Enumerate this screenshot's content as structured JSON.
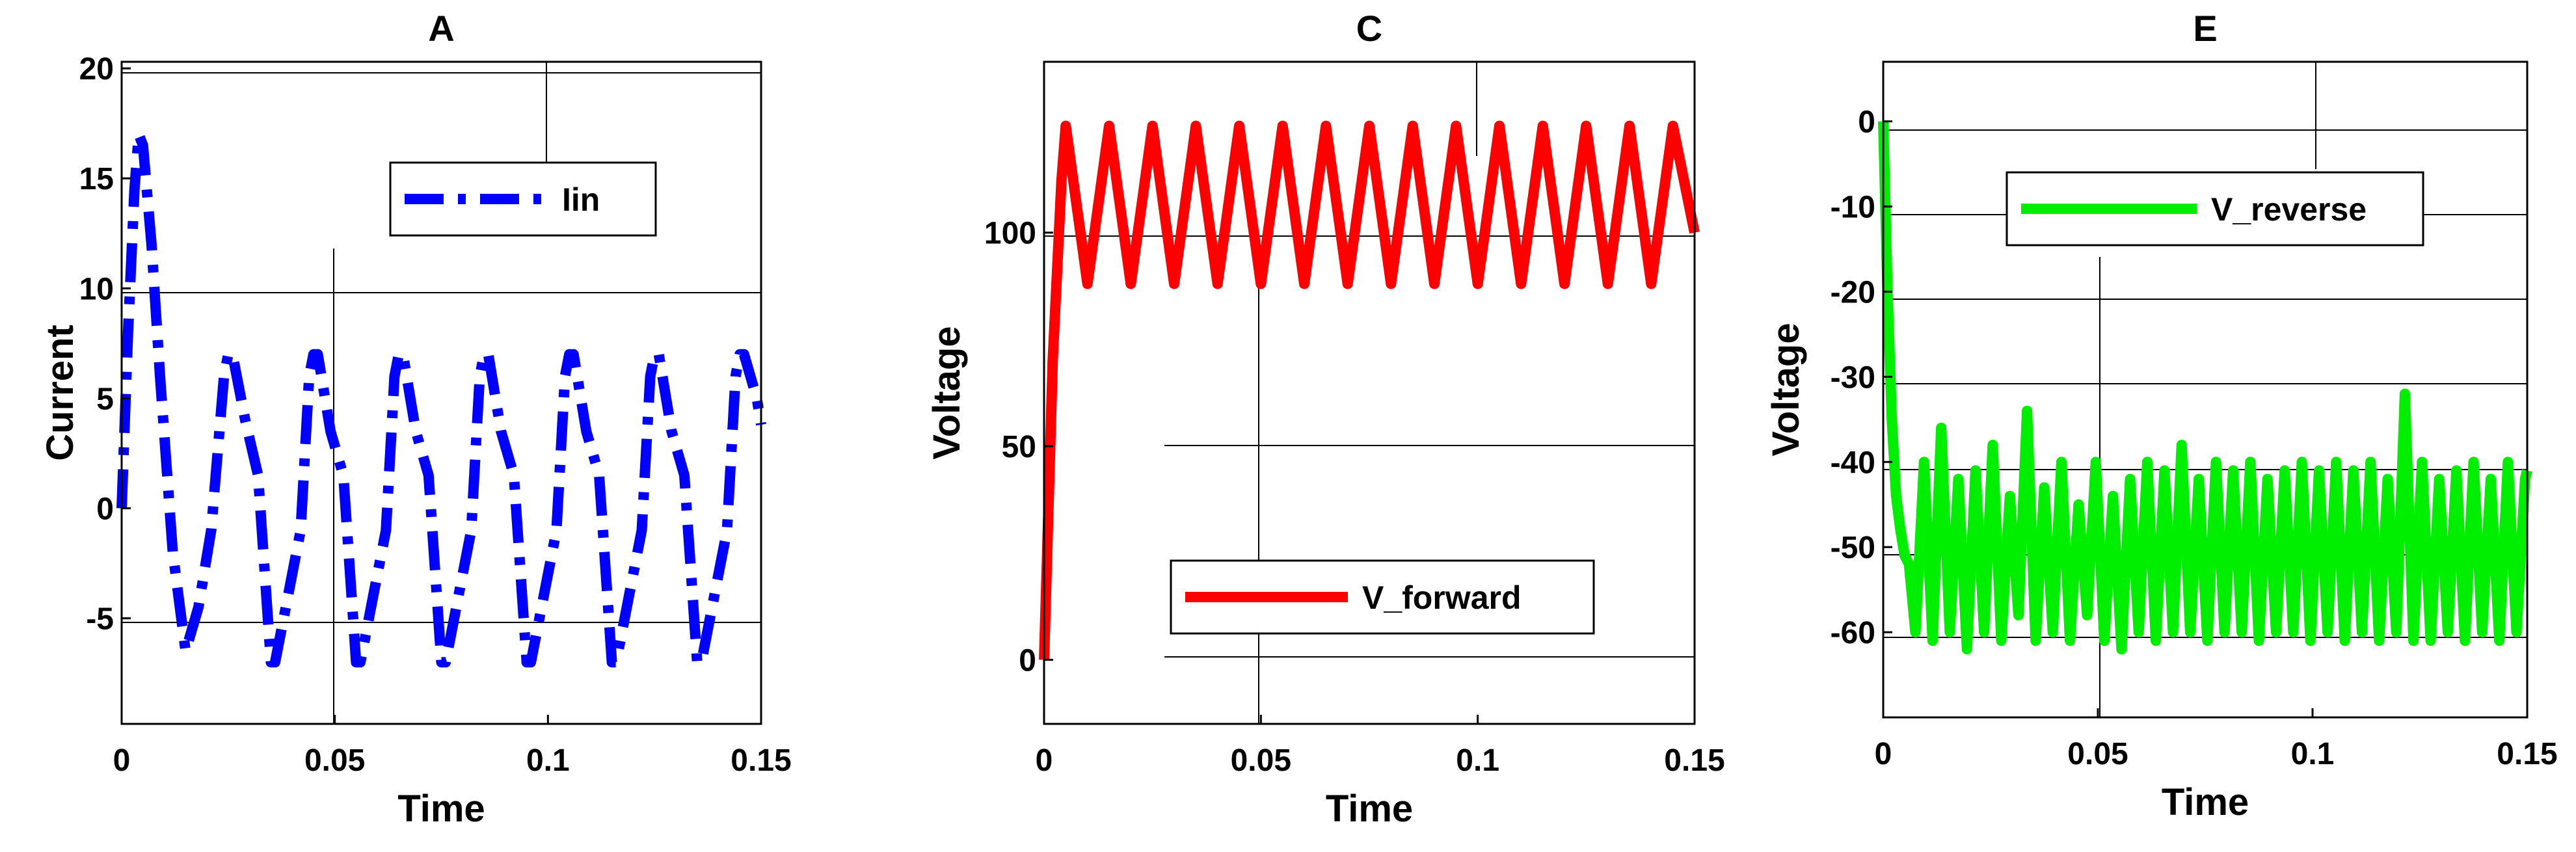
{
  "chart_data": [
    {
      "type": "line",
      "title": "A",
      "xlabel": "Time",
      "ylabel": "Current",
      "xlim": [
        0,
        0.15
      ],
      "ylim": [
        -9.8,
        20.3
      ],
      "xticks": [
        "0",
        "0.05",
        "0.1",
        "0.15"
      ],
      "xtick_values": [
        0,
        0.05,
        0.1,
        0.15
      ],
      "yticks": [
        "-5",
        "0",
        "5",
        "10",
        "15",
        "20"
      ],
      "ytick_values": [
        -5,
        0,
        5,
        10,
        15,
        20
      ],
      "legend_position": "top-right",
      "series": [
        {
          "name": "Iin",
          "color": "#0000ff",
          "style": "dash-dot",
          "x": [
            0,
            0.0015,
            0.003,
            0.004,
            0.005,
            0.007,
            0.009,
            0.012,
            0.015,
            0.018,
            0.021,
            0.024,
            0.025,
            0.026,
            0.029,
            0.032,
            0.035,
            0.036,
            0.039,
            0.042,
            0.044,
            0.045,
            0.046,
            0.049,
            0.052,
            0.055,
            0.056,
            0.059,
            0.062,
            0.064,
            0.065,
            0.066,
            0.069,
            0.072,
            0.075,
            0.076,
            0.079,
            0.082,
            0.084,
            0.085,
            0.086,
            0.089,
            0.092,
            0.095,
            0.096,
            0.099,
            0.102,
            0.104,
            0.105,
            0.106,
            0.109,
            0.112,
            0.115,
            0.116,
            0.119,
            0.122,
            0.124,
            0.125,
            0.126,
            0.129,
            0.132,
            0.135,
            0.136,
            0.139,
            0.142,
            0.144,
            0.145,
            0.146,
            0.149,
            0.15
          ],
          "y": [
            0,
            8,
            14.5,
            17,
            16.5,
            12,
            6,
            -2,
            -6.5,
            -4.5,
            -1,
            6,
            7,
            7,
            4,
            1.5,
            -7,
            -7,
            -4,
            -1,
            6,
            7,
            7,
            3.5,
            1.5,
            -7,
            -7,
            -4,
            -1,
            6,
            7,
            7,
            3.5,
            1.5,
            -7,
            -7,
            -4,
            -1,
            6,
            7,
            7,
            3.5,
            1.5,
            -7,
            -7,
            -4,
            -1,
            6,
            7,
            7,
            3.5,
            1.5,
            -7,
            -7,
            -4,
            -1,
            6,
            7,
            7,
            3.5,
            1.5,
            -7,
            -7,
            -4,
            -1,
            6,
            7,
            7,
            5,
            3.8
          ]
        }
      ]
    },
    {
      "type": "line",
      "title": "C",
      "xlabel": "Time",
      "ylabel": "Voltage",
      "xlim": [
        0,
        0.15
      ],
      "ylim": [
        -15,
        140
      ],
      "xticks": [
        "0",
        "0.05",
        "0.1",
        "0.15"
      ],
      "xtick_values": [
        0,
        0.05,
        0.1,
        0.15
      ],
      "yticks": [
        "0",
        "50",
        "100"
      ],
      "ytick_values": [
        0,
        50,
        100
      ],
      "legend_position": "bottom-right",
      "series": [
        {
          "name": "V_forward",
          "color": "#ff0000",
          "style": "solid",
          "x": [
            0,
            0.002,
            0.004,
            0.005,
            0.01,
            0.015,
            0.02,
            0.025,
            0.03,
            0.035,
            0.04,
            0.045,
            0.05,
            0.055,
            0.06,
            0.065,
            0.07,
            0.075,
            0.08,
            0.085,
            0.09,
            0.095,
            0.1,
            0.105,
            0.11,
            0.115,
            0.12,
            0.125,
            0.13,
            0.135,
            0.14,
            0.145,
            0.15
          ],
          "y": [
            0,
            70,
            112,
            125,
            88,
            125,
            88,
            125,
            88,
            125,
            88,
            125,
            88,
            125,
            88,
            125,
            88,
            125,
            88,
            125,
            88,
            125,
            88,
            125,
            88,
            125,
            88,
            125,
            88,
            125,
            88,
            125,
            100
          ]
        }
      ]
    },
    {
      "type": "line",
      "title": "E",
      "xlabel": "Time",
      "ylabel": "Voltage",
      "xlim": [
        0,
        0.15
      ],
      "ylim": [
        -70,
        7
      ],
      "xticks": [
        "0",
        "0.05",
        "0.1",
        "0.15"
      ],
      "xtick_values": [
        0,
        0.05,
        0.1,
        0.15
      ],
      "yticks": [
        "0",
        "-10",
        "-20",
        "-30",
        "-40",
        "-50",
        "-60"
      ],
      "ytick_values": [
        0,
        -10,
        -20,
        -30,
        -40,
        -50,
        -60
      ],
      "legend_position": "top-left",
      "series": [
        {
          "name": "V_reverse",
          "color": "#00ee00",
          "style": "solid",
          "x": [
            0,
            0.001,
            0.002,
            0.003,
            0.004,
            0.005,
            0.006,
            0.0075,
            0.0095,
            0.0115,
            0.0135,
            0.0155,
            0.0175,
            0.0195,
            0.0215,
            0.0235,
            0.0255,
            0.0275,
            0.0295,
            0.0315,
            0.0335,
            0.0355,
            0.0375,
            0.0395,
            0.0415,
            0.0435,
            0.0455,
            0.0475,
            0.0495,
            0.0515,
            0.0535,
            0.0555,
            0.0575,
            0.0595,
            0.0615,
            0.0635,
            0.0655,
            0.0675,
            0.0695,
            0.0715,
            0.0735,
            0.0755,
            0.0775,
            0.0795,
            0.0815,
            0.0835,
            0.0855,
            0.0875,
            0.0895,
            0.0915,
            0.0935,
            0.0955,
            0.0975,
            0.0995,
            0.1015,
            0.1035,
            0.1055,
            0.1075,
            0.1095,
            0.1115,
            0.1135,
            0.1155,
            0.1175,
            0.1195,
            0.1215,
            0.1235,
            0.1255,
            0.1275,
            0.1295,
            0.1315,
            0.1335,
            0.1355,
            0.1375,
            0.1395,
            0.1415,
            0.1435,
            0.1455,
            0.1475,
            0.1495,
            0.15
          ],
          "y": [
            0,
            -20,
            -35,
            -44,
            -48,
            -51,
            -52,
            -60,
            -40,
            -61,
            -36,
            -60,
            -42,
            -62,
            -41,
            -60,
            -38,
            -61,
            -44,
            -58,
            -34,
            -61,
            -43,
            -60,
            -40,
            -61,
            -45,
            -58,
            -40,
            -61,
            -44,
            -62,
            -42,
            -60,
            -40,
            -61,
            -41,
            -60,
            -38,
            -60,
            -42,
            -61,
            -40,
            -60,
            -41,
            -60,
            -40,
            -61,
            -42,
            -60,
            -41,
            -60,
            -40,
            -61,
            -41,
            -60,
            -40,
            -61,
            -41,
            -60,
            -40,
            -61,
            -42,
            -60,
            -32,
            -61,
            -40,
            -61,
            -42,
            -60,
            -41,
            -61,
            -40,
            -60,
            -42,
            -61,
            -40,
            -60,
            -42,
            -41
          ]
        }
      ]
    }
  ]
}
